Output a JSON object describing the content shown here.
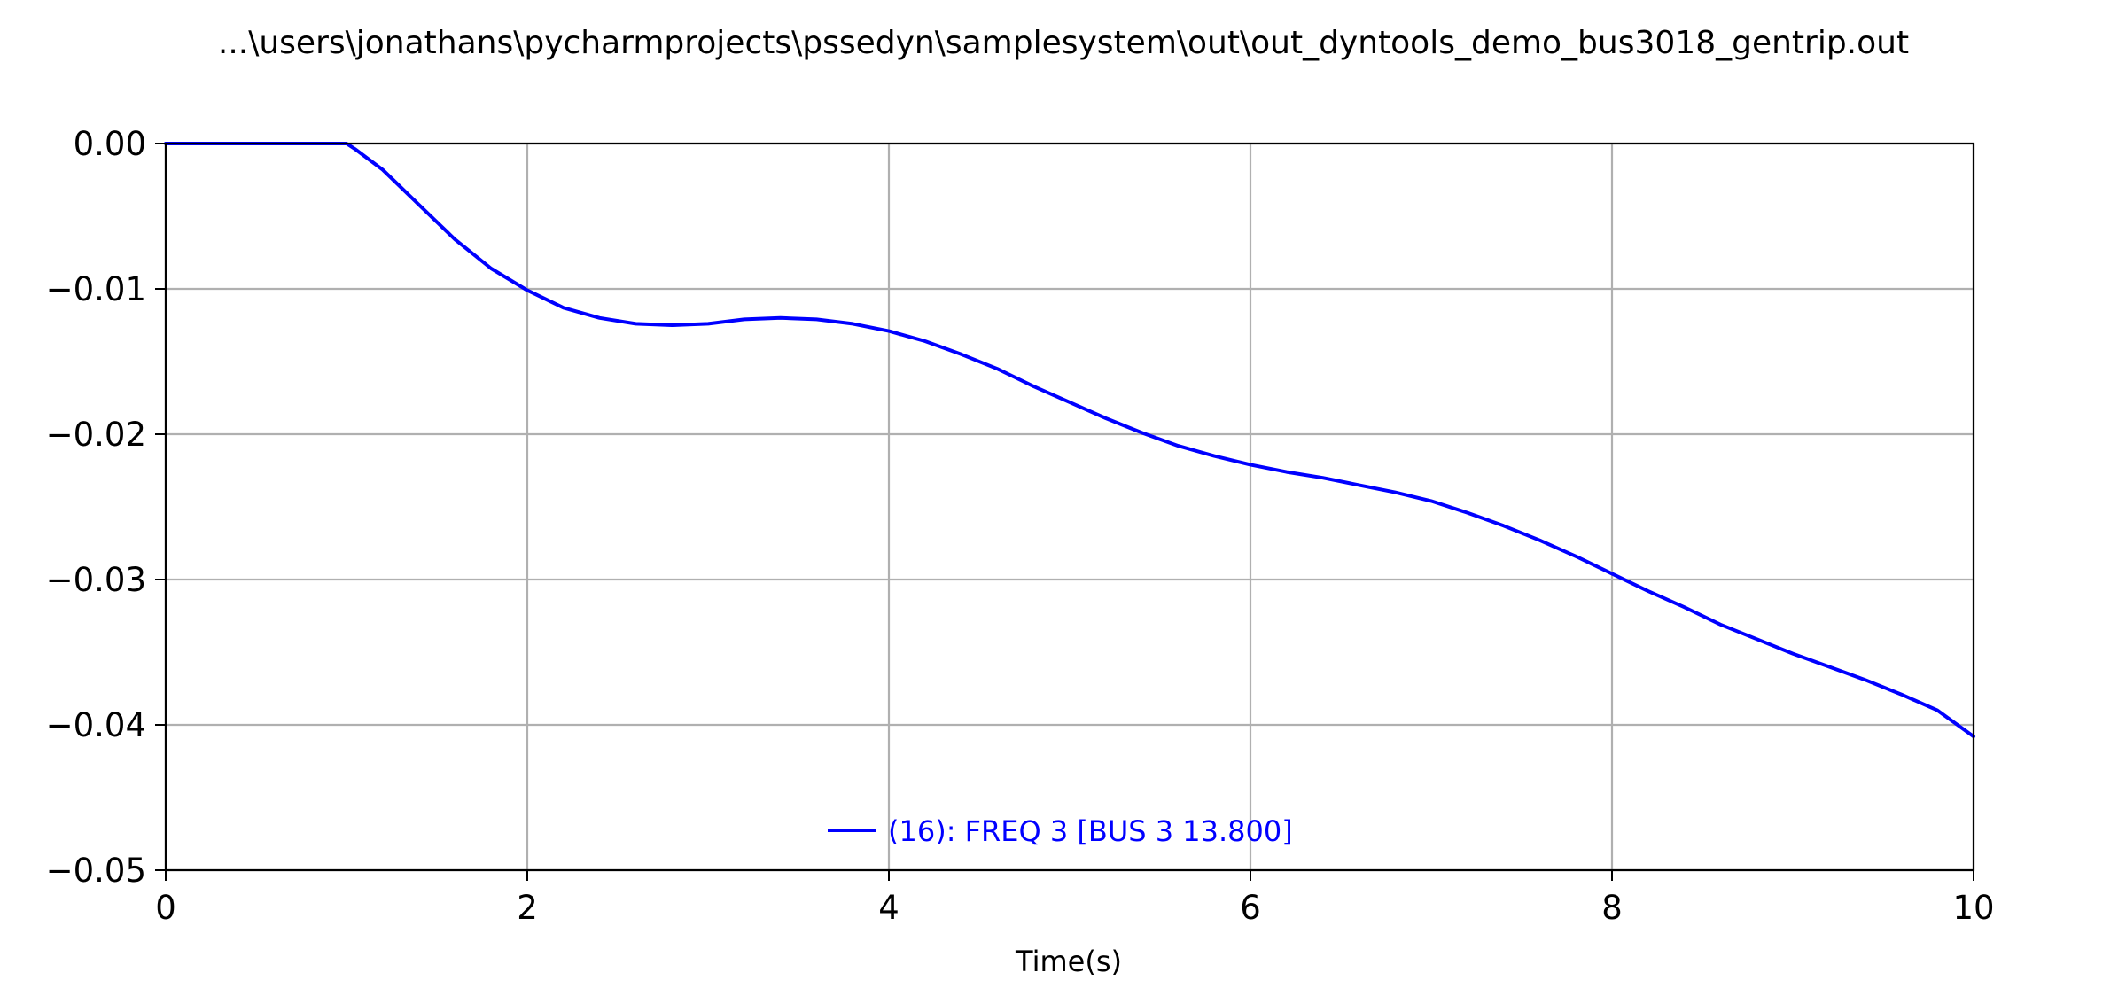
{
  "chart_data": {
    "type": "line",
    "title": "...\\users\\jonathans\\pycharmprojects\\pssedyn\\samplesystem\\out\\out_dyntools_demo_bus3018_gentrip.out",
    "xlabel": "Time(s)",
    "ylabel": "",
    "xlim": [
      0,
      10
    ],
    "ylim": [
      -0.05,
      0.0
    ],
    "xticks": [
      0,
      2,
      4,
      6,
      8,
      10
    ],
    "xtick_labels": [
      "0",
      "2",
      "4",
      "6",
      "8",
      "10"
    ],
    "yticks": [
      0.0,
      -0.01,
      -0.02,
      -0.03,
      -0.04,
      -0.05
    ],
    "ytick_labels": [
      "0.00",
      "−0.01",
      "−0.02",
      "−0.03",
      "−0.04",
      "−0.05"
    ],
    "grid": true,
    "legend_position": "lower-center",
    "series": [
      {
        "name": "(16): FREQ 3 [BUS 3 13.800]",
        "color": "#0000ff",
        "x": [
          0,
          0.5,
          1.0,
          1.05,
          1.2,
          1.4,
          1.6,
          1.8,
          2.0,
          2.2,
          2.4,
          2.6,
          2.8,
          3.0,
          3.2,
          3.4,
          3.6,
          3.8,
          4.0,
          4.2,
          4.4,
          4.6,
          4.8,
          5.0,
          5.2,
          5.4,
          5.6,
          5.8,
          6.0,
          6.2,
          6.4,
          6.6,
          6.8,
          7.0,
          7.2,
          7.4,
          7.6,
          7.8,
          8.0,
          8.2,
          8.4,
          8.6,
          8.8,
          9.0,
          9.2,
          9.4,
          9.6,
          9.8,
          10.0
        ],
        "y": [
          0,
          0,
          0,
          -0.0004,
          -0.0018,
          -0.0042,
          -0.0066,
          -0.0086,
          -0.0101,
          -0.0113,
          -0.012,
          -0.0124,
          -0.0125,
          -0.0124,
          -0.0121,
          -0.012,
          -0.0121,
          -0.0124,
          -0.0129,
          -0.0136,
          -0.0145,
          -0.0155,
          -0.0167,
          -0.0178,
          -0.0189,
          -0.0199,
          -0.0208,
          -0.0215,
          -0.0221,
          -0.0226,
          -0.023,
          -0.0235,
          -0.024,
          -0.0246,
          -0.0254,
          -0.0263,
          -0.0273,
          -0.0284,
          -0.0296,
          -0.0308,
          -0.0319,
          -0.0331,
          -0.0341,
          -0.0351,
          -0.036,
          -0.0369,
          -0.0379,
          -0.039,
          -0.0408
        ]
      }
    ]
  }
}
